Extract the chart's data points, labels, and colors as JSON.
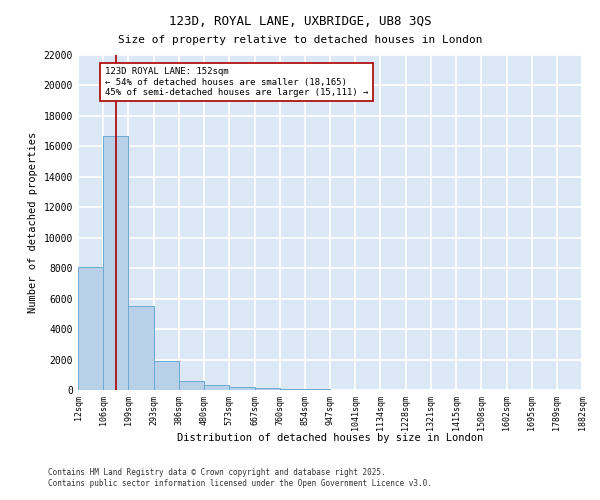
{
  "title_line1": "123D, ROYAL LANE, UXBRIDGE, UB8 3QS",
  "title_line2": "Size of property relative to detached houses in London",
  "xlabel": "Distribution of detached houses by size in London",
  "ylabel": "Number of detached properties",
  "bar_color": "#b8d0e8",
  "bar_edge_color": "#6aaad4",
  "background_color": "#dce8f5",
  "grid_color": "#ffffff",
  "bin_edges": [
    12,
    106,
    199,
    293,
    386,
    480,
    573,
    667,
    760,
    854,
    947,
    1041,
    1134,
    1228,
    1321,
    1415,
    1508,
    1602,
    1695,
    1789,
    1882
  ],
  "bar_heights": [
    8100,
    16700,
    5500,
    1900,
    600,
    350,
    200,
    100,
    60,
    40,
    25,
    15,
    10,
    8,
    5,
    3,
    2,
    1,
    1,
    1
  ],
  "property_size": 152,
  "annotation_title": "123D ROYAL LANE: 152sqm",
  "annotation_line1": "← 54% of detached houses are smaller (18,165)",
  "annotation_line2": "45% of semi-detached houses are larger (15,111) →",
  "red_line_color": "#aa0000",
  "annotation_box_color": "#aa0000",
  "ylim": [
    0,
    22000
  ],
  "yticks": [
    0,
    2000,
    4000,
    6000,
    8000,
    10000,
    12000,
    14000,
    16000,
    18000,
    20000,
    22000
  ],
  "footer_line1": "Contains HM Land Registry data © Crown copyright and database right 2025.",
  "footer_line2": "Contains public sector information licensed under the Open Government Licence v3.0."
}
